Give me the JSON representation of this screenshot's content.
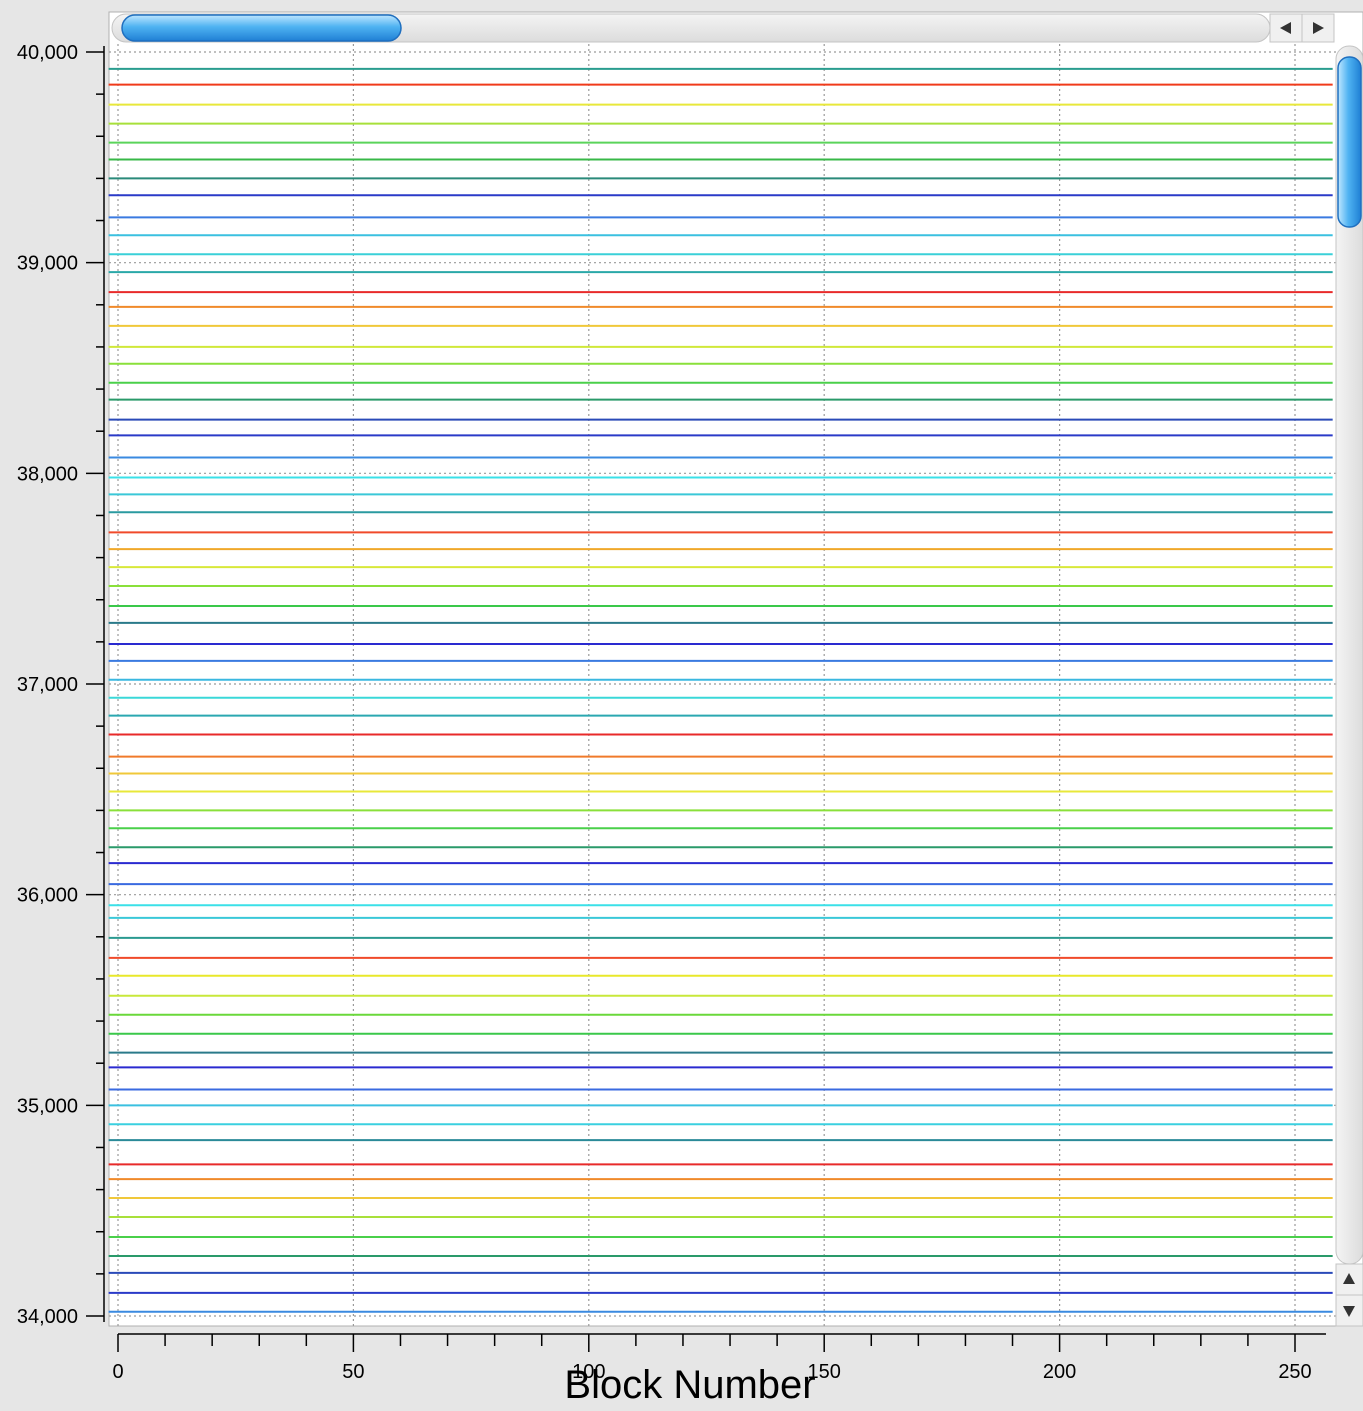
{
  "chart_data": {
    "type": "line",
    "title": "",
    "xlabel": "Block Number",
    "ylabel": "",
    "xlim": [
      -2,
      258
    ],
    "ylim": [
      34000,
      40000
    ],
    "x_ticks": [
      0,
      50,
      100,
      150,
      200,
      250
    ],
    "x_tick_labels": [
      "0",
      "50",
      "100",
      "150",
      "200",
      "250"
    ],
    "y_ticks": [
      34000,
      35000,
      36000,
      37000,
      38000,
      39000,
      40000
    ],
    "y_tick_labels": [
      "34,000",
      "35,000",
      "36,000",
      "37,000",
      "38,000",
      "39,000",
      "40,000"
    ],
    "grid": true,
    "legend": "none",
    "x_range_of_lines": [
      -2,
      258
    ],
    "series": [
      {
        "value": 39920,
        "color": "#2a9d8f"
      },
      {
        "value": 39845,
        "color": "#f03a1a"
      },
      {
        "value": 39750,
        "color": "#e8e83a"
      },
      {
        "value": 39660,
        "color": "#a8e03a"
      },
      {
        "value": 39570,
        "color": "#5ad45a"
      },
      {
        "value": 39490,
        "color": "#38b848"
      },
      {
        "value": 39400,
        "color": "#2a8a7a"
      },
      {
        "value": 39320,
        "color": "#2a3ac8"
      },
      {
        "value": 39215,
        "color": "#3a7ae0"
      },
      {
        "value": 39130,
        "color": "#3ac0e0"
      },
      {
        "value": 39040,
        "color": "#3ad0d8"
      },
      {
        "value": 38955,
        "color": "#2aa8a8"
      },
      {
        "value": 38860,
        "color": "#e82a2a"
      },
      {
        "value": 38790,
        "color": "#f08a2a"
      },
      {
        "value": 38700,
        "color": "#f0c83a"
      },
      {
        "value": 38600,
        "color": "#d0e83a"
      },
      {
        "value": 38520,
        "color": "#8ae03a"
      },
      {
        "value": 38430,
        "color": "#4ad04a"
      },
      {
        "value": 38350,
        "color": "#2a9a6a"
      },
      {
        "value": 38255,
        "color": "#2a4ab8"
      },
      {
        "value": 38180,
        "color": "#2a3ac8"
      },
      {
        "value": 38075,
        "color": "#3a8ae0"
      },
      {
        "value": 37980,
        "color": "#3ae0e8"
      },
      {
        "value": 37900,
        "color": "#3ac8d8"
      },
      {
        "value": 37815,
        "color": "#2a9aa0"
      },
      {
        "value": 37720,
        "color": "#f04a2a"
      },
      {
        "value": 37640,
        "color": "#f0a82a"
      },
      {
        "value": 37555,
        "color": "#d8e83a"
      },
      {
        "value": 37465,
        "color": "#8ae03a"
      },
      {
        "value": 37370,
        "color": "#3ac84a"
      },
      {
        "value": 37290,
        "color": "#2a7a8a"
      },
      {
        "value": 37190,
        "color": "#2a2ad0"
      },
      {
        "value": 37110,
        "color": "#3a7ae0"
      },
      {
        "value": 37020,
        "color": "#3ab8e0"
      },
      {
        "value": 36935,
        "color": "#3ad8d8"
      },
      {
        "value": 36850,
        "color": "#2aa8b0"
      },
      {
        "value": 36760,
        "color": "#e82a2a"
      },
      {
        "value": 36655,
        "color": "#f07a2a"
      },
      {
        "value": 36575,
        "color": "#f0c83a"
      },
      {
        "value": 36490,
        "color": "#e8e83a"
      },
      {
        "value": 36400,
        "color": "#8ae03a"
      },
      {
        "value": 36315,
        "color": "#4ad04a"
      },
      {
        "value": 36225,
        "color": "#2a9a6a"
      },
      {
        "value": 36150,
        "color": "#2a2ad0"
      },
      {
        "value": 36050,
        "color": "#3a6ae0"
      },
      {
        "value": 35950,
        "color": "#3ae0e8"
      },
      {
        "value": 35890,
        "color": "#3ac8d8"
      },
      {
        "value": 35795,
        "color": "#2a9a90"
      },
      {
        "value": 35700,
        "color": "#f04a2a"
      },
      {
        "value": 35615,
        "color": "#e8e82a"
      },
      {
        "value": 35520,
        "color": "#c8e83a"
      },
      {
        "value": 35430,
        "color": "#6ad83a"
      },
      {
        "value": 35340,
        "color": "#3ac84a"
      },
      {
        "value": 35250,
        "color": "#2a7a8a"
      },
      {
        "value": 35180,
        "color": "#2a2ad0"
      },
      {
        "value": 35075,
        "color": "#3a6ae0"
      },
      {
        "value": 35000,
        "color": "#3ac0e0"
      },
      {
        "value": 34910,
        "color": "#3ad0e0"
      },
      {
        "value": 34835,
        "color": "#2a8a98"
      },
      {
        "value": 34720,
        "color": "#e82a2a"
      },
      {
        "value": 34650,
        "color": "#f08a2a"
      },
      {
        "value": 34560,
        "color": "#f0c83a"
      },
      {
        "value": 34470,
        "color": "#a8e03a"
      },
      {
        "value": 34375,
        "color": "#4ad04a"
      },
      {
        "value": 34285,
        "color": "#2a9a6a"
      },
      {
        "value": 34205,
        "color": "#2a4ab8"
      },
      {
        "value": 34110,
        "color": "#2a3ac8"
      },
      {
        "value": 34020,
        "color": "#3a8ae0"
      }
    ]
  }
}
